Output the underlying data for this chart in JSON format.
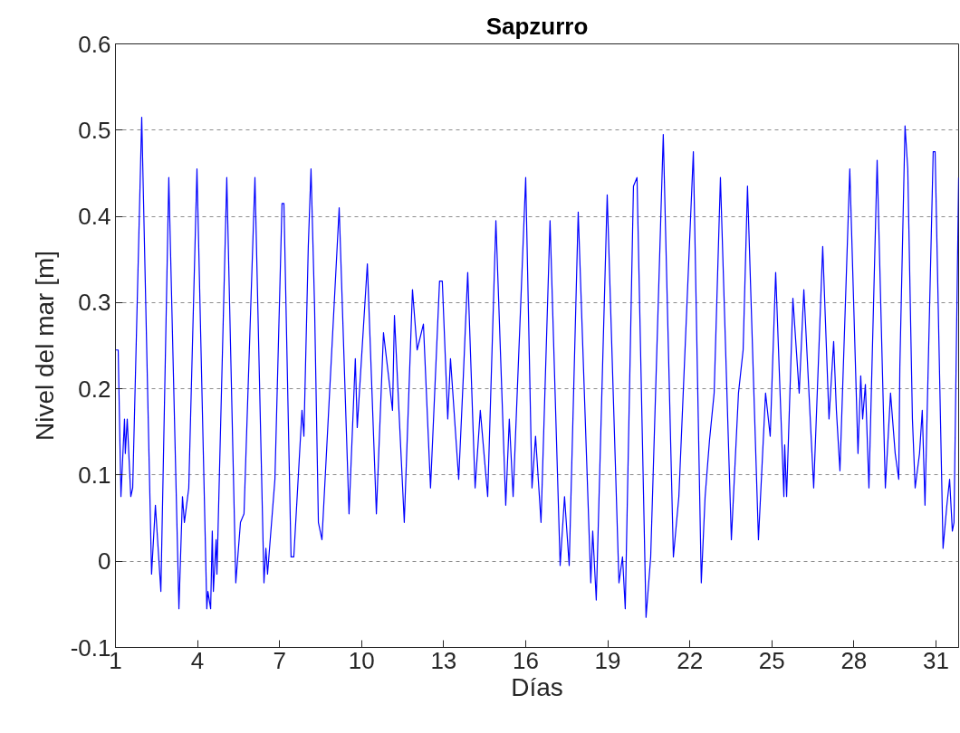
{
  "chart_data": {
    "type": "line",
    "title": "Sapzurro",
    "xlabel": "Días",
    "ylabel": "Nivel del mar [m]",
    "xlim": [
      1,
      31.83
    ],
    "ylim": [
      -0.1,
      0.6
    ],
    "xticks": [
      1,
      4,
      7,
      10,
      13,
      16,
      19,
      22,
      25,
      28,
      31
    ],
    "yticks": [
      -0.1,
      0,
      0.1,
      0.2,
      0.3,
      0.4,
      0.5,
      0.6
    ],
    "grid": "y",
    "line_style": "solid",
    "series": [
      {
        "color": "#0000ff",
        "x": [
          1,
          1.1,
          1.2,
          1.33,
          1.36,
          1.43,
          1.56,
          1.63,
          1.96,
          2.32,
          2.46,
          2.56,
          2.66,
          2.95,
          3.32,
          3.45,
          3.52,
          3.68,
          3.98,
          4.34,
          4.38,
          4.48,
          4.54,
          4.58,
          4.68,
          4.71,
          5.07,
          5.4,
          5.57,
          5.7,
          6.1,
          6.43,
          6.5,
          6.56,
          6.83,
          7.09,
          7.16,
          7.42,
          7.52,
          7.82,
          7.89,
          8.05,
          8.15,
          8.28,
          8.42,
          8.55,
          9.18,
          9.54,
          9.77,
          9.84,
          10.21,
          10.54,
          10.8,
          11.13,
          11.2,
          11.56,
          11.86,
          12.03,
          12.26,
          12.52,
          12.85,
          12.95,
          13.15,
          13.25,
          13.55,
          13.72,
          13.88,
          14.15,
          14.34,
          14.61,
          14.91,
          15.27,
          15.4,
          15.54,
          16.0,
          16.23,
          16.36,
          16.56,
          16.89,
          17.26,
          17.42,
          17.59,
          17.92,
          18.38,
          18.45,
          18.58,
          18.98,
          19.41,
          19.54,
          19.64,
          19.94,
          20.07,
          20.4,
          20.57,
          21.03,
          21.4,
          21.6,
          22.13,
          22.42,
          22.56,
          22.72,
          22.89,
          23.12,
          23.52,
          23.78,
          23.95,
          24.11,
          24.51,
          24.77,
          24.94,
          25.14,
          25.44,
          25.47,
          25.54,
          25.77,
          26.0,
          26.17,
          26.53,
          26.86,
          27.09,
          27.26,
          27.36,
          27.49,
          27.85,
          28.15,
          28.25,
          28.32,
          28.42,
          28.55,
          28.85,
          29.15,
          29.34,
          29.51,
          29.64,
          29.68,
          29.87,
          29.97,
          30.14,
          30.24,
          30.4,
          30.5,
          30.6,
          30.9,
          30.97,
          31.26,
          31.4,
          31.5,
          31.6,
          31.66,
          31.83
        ],
        "values": [
          0.245,
          0.245,
          0.075,
          0.165,
          0.125,
          0.165,
          0.075,
          0.085,
          0.515,
          -0.015,
          0.065,
          0.015,
          -0.035,
          0.445,
          -0.055,
          0.075,
          0.045,
          0.085,
          0.455,
          -0.055,
          -0.035,
          -0.055,
          0.035,
          -0.035,
          0.025,
          -0.015,
          0.445,
          -0.025,
          0.045,
          0.055,
          0.445,
          -0.025,
          0.015,
          -0.015,
          0.095,
          0.415,
          0.415,
          0.005,
          0.005,
          0.175,
          0.145,
          0.365,
          0.455,
          0.295,
          0.045,
          0.025,
          0.41,
          0.055,
          0.235,
          0.155,
          0.345,
          0.055,
          0.265,
          0.175,
          0.285,
          0.045,
          0.315,
          0.245,
          0.275,
          0.085,
          0.325,
          0.325,
          0.165,
          0.235,
          0.095,
          0.215,
          0.335,
          0.085,
          0.175,
          0.075,
          0.395,
          0.065,
          0.165,
          0.075,
          0.445,
          0.085,
          0.145,
          0.045,
          0.395,
          -0.005,
          0.075,
          -0.005,
          0.405,
          -0.025,
          0.035,
          -0.045,
          0.425,
          -0.025,
          0.005,
          -0.055,
          0.435,
          0.445,
          -0.065,
          0.005,
          0.495,
          0.005,
          0.075,
          0.475,
          -0.025,
          0.075,
          0.14,
          0.195,
          0.445,
          0.025,
          0.195,
          0.245,
          0.435,
          0.025,
          0.195,
          0.145,
          0.335,
          0.075,
          0.135,
          0.075,
          0.305,
          0.195,
          0.315,
          0.085,
          0.365,
          0.165,
          0.255,
          0.175,
          0.105,
          0.455,
          0.125,
          0.215,
          0.165,
          0.205,
          0.085,
          0.465,
          0.085,
          0.195,
          0.125,
          0.095,
          0.225,
          0.505,
          0.455,
          0.165,
          0.085,
          0.125,
          0.175,
          0.065,
          0.475,
          0.475,
          0.015,
          0.065,
          0.095,
          0.035,
          0.045,
          0.445
        ]
      }
    ]
  }
}
